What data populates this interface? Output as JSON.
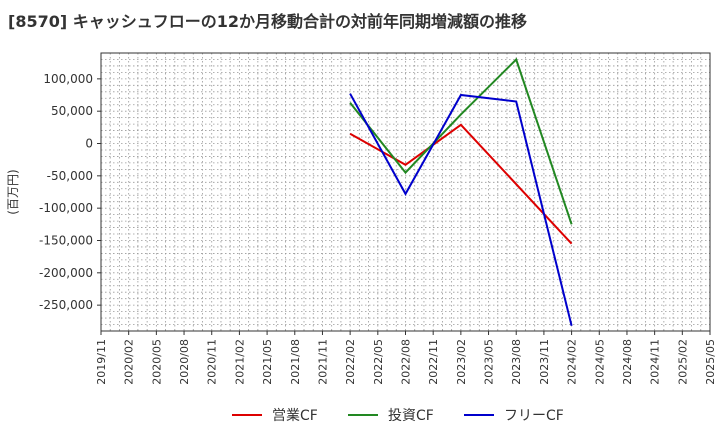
{
  "chart_data": {
    "type": "line",
    "title": "[8570]  キャッシュフローの12か月移動合計の対前年同期増減額の推移",
    "ylabel": "(百万円)",
    "xlabel": "",
    "x_ticks": [
      "2019/11",
      "2020/02",
      "2020/05",
      "2020/08",
      "2020/11",
      "2021/02",
      "2021/05",
      "2021/08",
      "2021/11",
      "2022/02",
      "2022/05",
      "2022/08",
      "2022/11",
      "2023/02",
      "2023/05",
      "2023/08",
      "2023/11",
      "2024/02",
      "2024/05",
      "2024/08",
      "2024/11",
      "2025/02",
      "2025/05"
    ],
    "y_ticks": [
      100000,
      50000,
      0,
      -50000,
      -100000,
      -150000,
      -200000,
      -250000
    ],
    "y_tick_labels": [
      "100,000",
      "50,000",
      "0",
      "-50,000",
      "-100,000",
      "-150,000",
      "-200,000",
      "-250,000"
    ],
    "ylim": [
      -290000,
      140000
    ],
    "grid": true,
    "legend_position": "bottom",
    "series": [
      {
        "name": "営業CF",
        "color": "#dd0000",
        "x": [
          "2022/02",
          "2022/08",
          "2023/02",
          "2024/02"
        ],
        "values": [
          15000,
          -33000,
          29000,
          -155000
        ]
      },
      {
        "name": "投資CF",
        "color": "#228822",
        "x": [
          "2022/02",
          "2022/08",
          "2023/02",
          "2023/08",
          "2024/02"
        ],
        "values": [
          63000,
          -45000,
          45000,
          130000,
          -125000
        ]
      },
      {
        "name": "フリーCF",
        "color": "#0000cc",
        "x": [
          "2022/02",
          "2022/08",
          "2023/02",
          "2023/08",
          "2024/02"
        ],
        "values": [
          77000,
          -78000,
          75000,
          65000,
          -282000
        ]
      }
    ]
  }
}
